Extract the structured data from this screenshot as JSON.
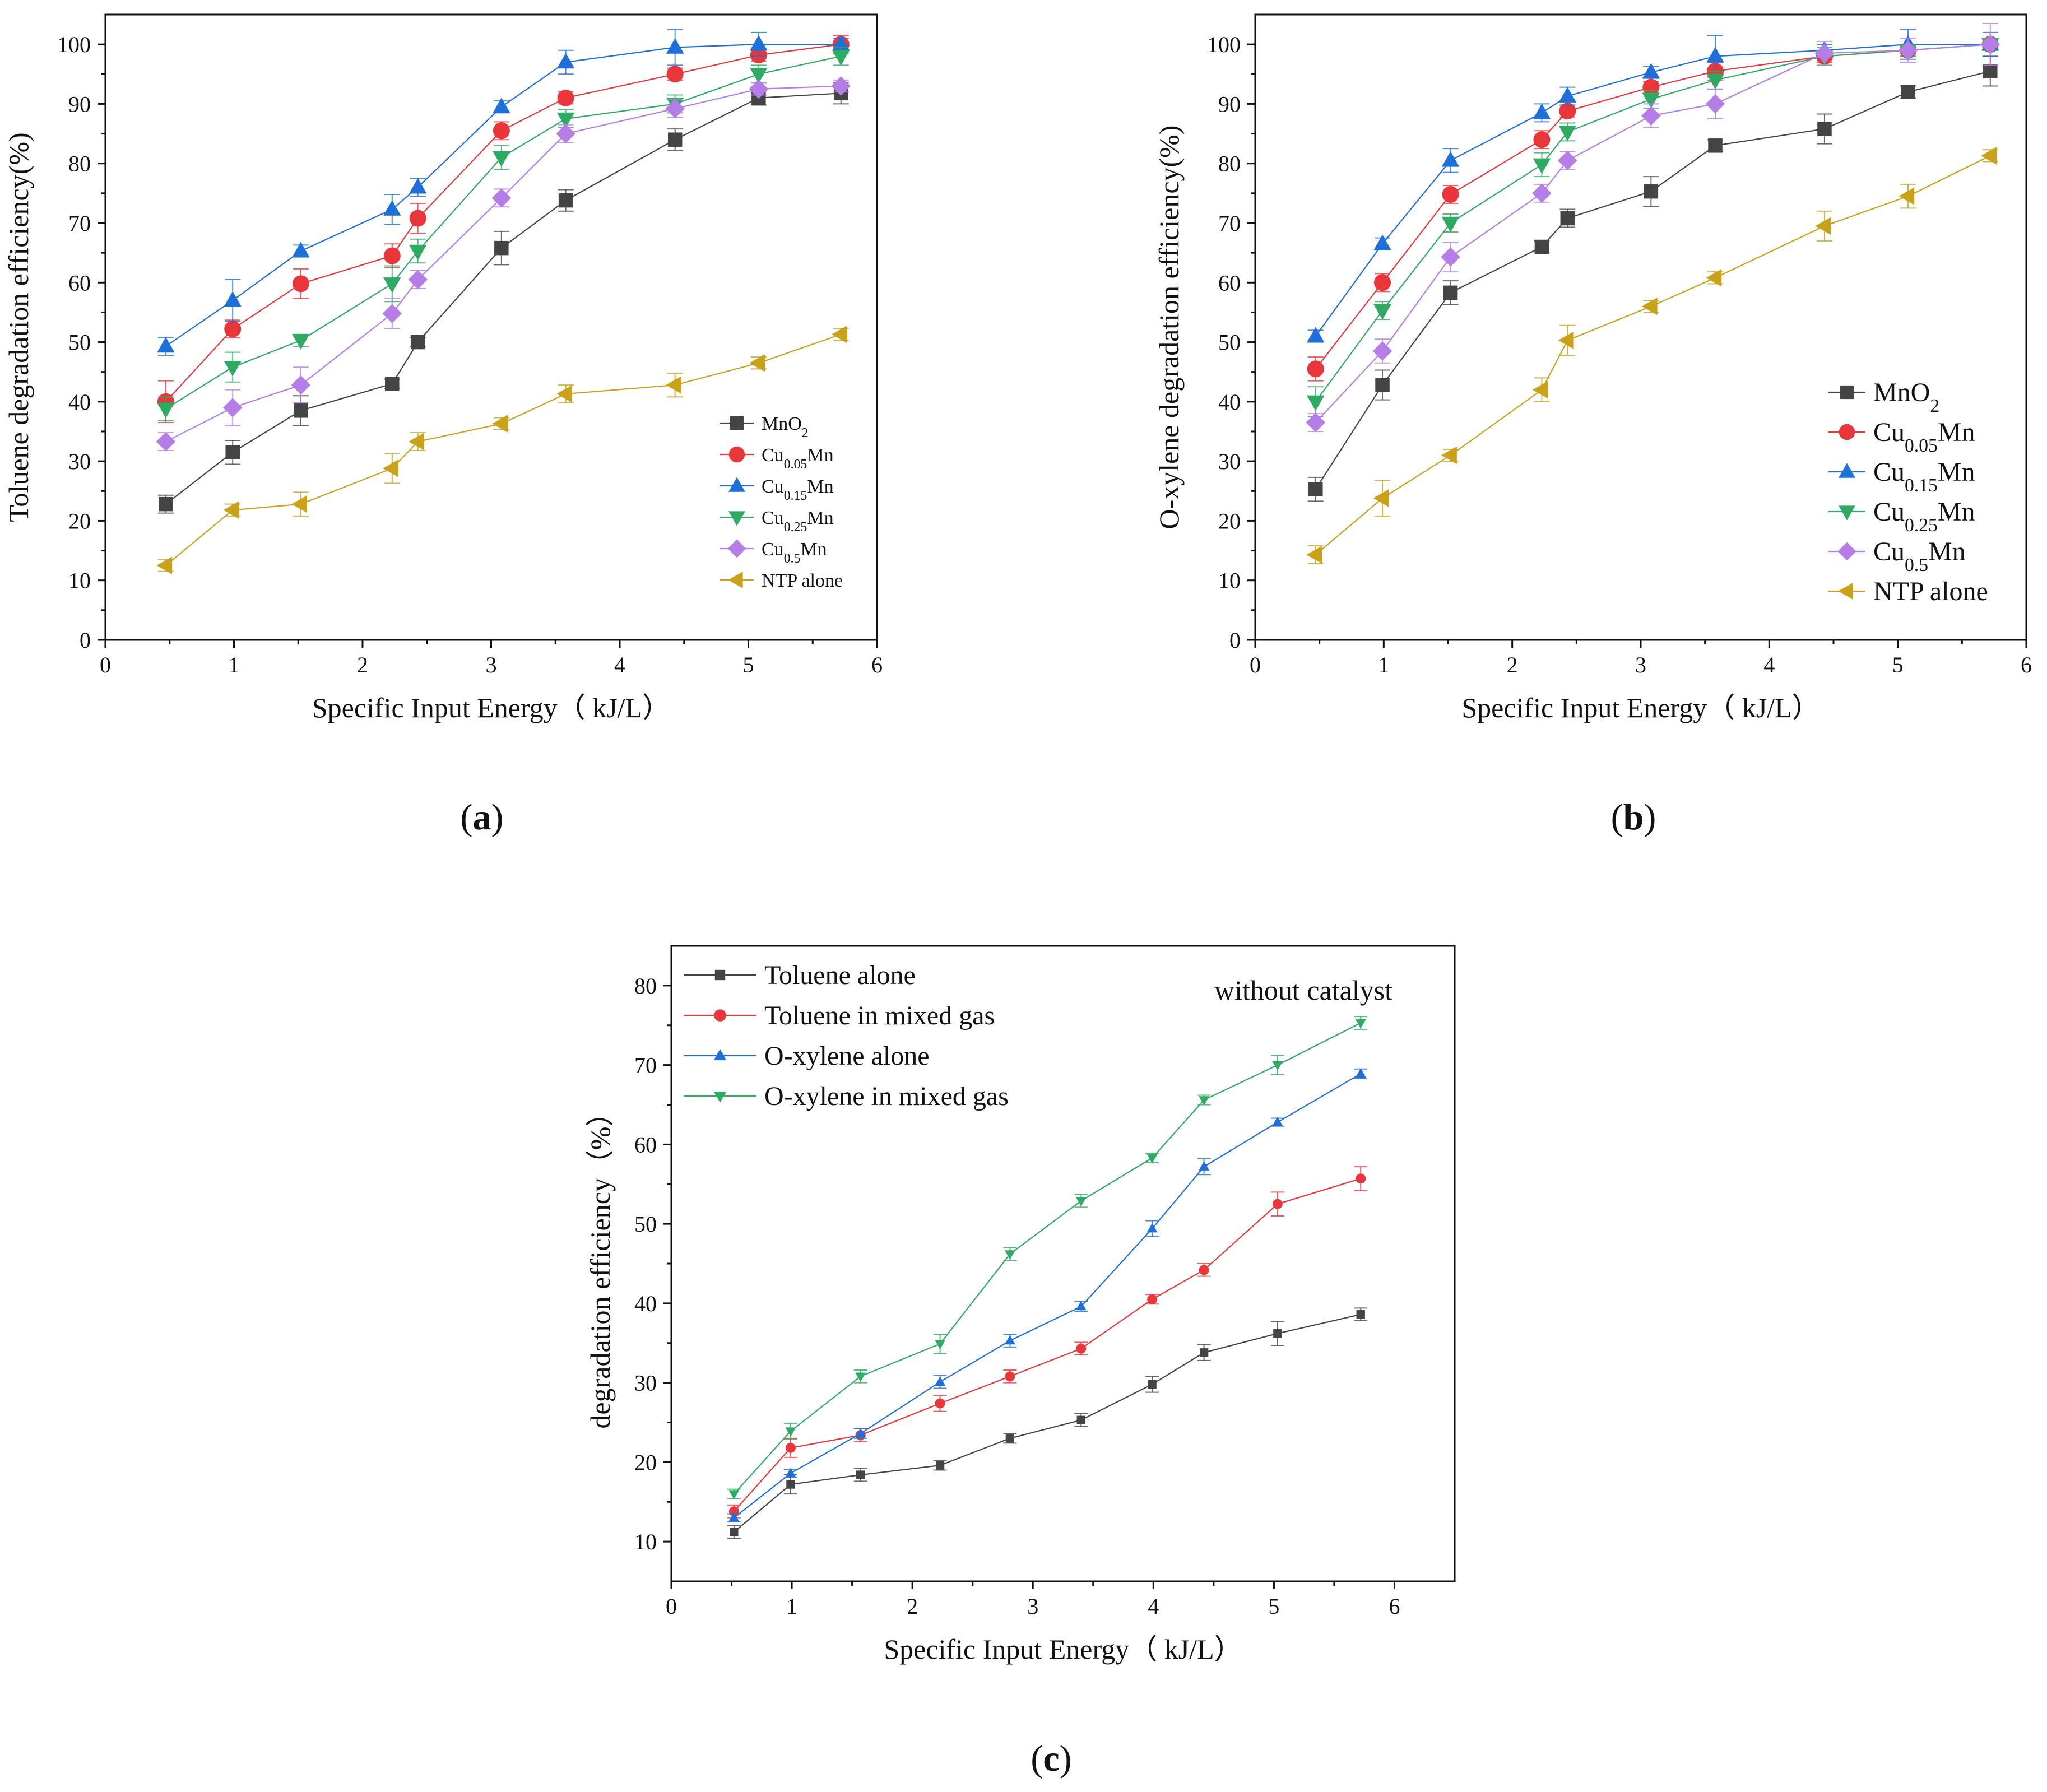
{
  "figure": {
    "panel_labels": [
      {
        "open": "(",
        "letter": "a",
        "close": ")"
      },
      {
        "open": "(",
        "letter": "b",
        "close": ")"
      },
      {
        "open": "(",
        "letter": "c",
        "close": ")"
      }
    ]
  },
  "chart_data": [
    {
      "panel": "a",
      "type": "line",
      "title": "",
      "xlabel": "Specific Input Energy（ kJ/L）",
      "ylabel": "Toluene degradation efficiency(%)",
      "xlim": [
        0,
        6
      ],
      "ylim": [
        0,
        105
      ],
      "xticks": [
        0,
        1,
        2,
        3,
        4,
        5,
        6
      ],
      "yticks": [
        0,
        10,
        20,
        30,
        40,
        50,
        60,
        70,
        80,
        90,
        100
      ],
      "legend_position": "center-right",
      "series": [
        {
          "name": "MnO₂",
          "label_main": "MnO",
          "label_sub": "2",
          "label_tail": "",
          "color": "#444444",
          "marker": "square",
          "x": [
            0.47,
            0.99,
            1.52,
            2.23,
            2.43,
            3.08,
            3.58,
            4.43,
            5.08,
            5.72
          ],
          "y": [
            22.8,
            31.5,
            38.5,
            43.0,
            50.0,
            65.8,
            73.8,
            84.0,
            91.0,
            91.8
          ],
          "err": [
            1.5,
            2.0,
            2.5,
            0.8,
            0.8,
            2.8,
            1.8,
            1.8,
            1.2,
            1.8
          ]
        },
        {
          "name": "Cu0.05Mn",
          "label_main": "Cu",
          "label_sub": "0.05",
          "label_tail": "Mn",
          "color": "#e8363a",
          "marker": "circle",
          "x": [
            0.47,
            0.99,
            1.52,
            2.23,
            2.43,
            3.08,
            3.58,
            4.43,
            5.08,
            5.72
          ],
          "y": [
            40.0,
            52.2,
            59.8,
            64.5,
            70.8,
            85.5,
            91.0,
            95.0,
            98.2,
            100.0
          ],
          "err": [
            3.5,
            1.5,
            2.5,
            2.0,
            2.5,
            1.5,
            1.0,
            1.0,
            1.0,
            1.5
          ]
        },
        {
          "name": "Cu0.15Mn",
          "label_main": "Cu",
          "label_sub": "0.15",
          "label_tail": "Mn",
          "color": "#1f6fd8",
          "marker": "triangle-up",
          "x": [
            0.47,
            0.99,
            1.52,
            2.23,
            2.43,
            3.08,
            3.58,
            4.43,
            5.08,
            5.72
          ],
          "y": [
            49.3,
            57.0,
            65.3,
            72.3,
            76.0,
            89.5,
            97.0,
            99.5,
            100.0,
            100.0
          ],
          "err": [
            1.5,
            3.5,
            1.0,
            2.5,
            1.5,
            1.0,
            2.0,
            3.0,
            2.0,
            1.0
          ]
        },
        {
          "name": "Cu0.25Mn",
          "label_main": "Cu",
          "label_sub": "0.25",
          "label_tail": "Mn",
          "color": "#2eaa63",
          "marker": "triangle-down",
          "x": [
            0.47,
            0.99,
            1.52,
            2.23,
            2.43,
            3.08,
            3.58,
            4.43,
            5.08,
            5.72
          ],
          "y": [
            38.8,
            45.8,
            50.3,
            59.8,
            65.3,
            81.0,
            87.5,
            90.0,
            95.0,
            98.0
          ],
          "err": [
            2.0,
            2.5,
            1.0,
            3.0,
            2.0,
            2.0,
            1.5,
            1.5,
            1.5,
            1.5
          ]
        },
        {
          "name": "Cu0.5Mn",
          "label_main": "Cu",
          "label_sub": "0.5",
          "label_tail": "Mn",
          "color": "#b57ee6",
          "marker": "diamond",
          "x": [
            0.47,
            0.99,
            1.52,
            2.23,
            2.43,
            3.08,
            3.58,
            4.43,
            5.08,
            5.72
          ],
          "y": [
            33.3,
            39.0,
            42.8,
            54.8,
            60.5,
            74.2,
            85.0,
            89.2,
            92.5,
            93.0
          ],
          "err": [
            1.5,
            3.0,
            3.0,
            2.5,
            1.5,
            1.5,
            1.5,
            1.5,
            1.0,
            1.0
          ]
        },
        {
          "name": "NTP alone",
          "label_main": "NTP alone",
          "label_sub": "",
          "label_tail": "",
          "color": "#c9a21a",
          "marker": "triangle-left",
          "x": [
            0.47,
            0.99,
            1.52,
            2.23,
            2.43,
            3.08,
            3.58,
            4.43,
            5.08,
            5.72
          ],
          "y": [
            12.5,
            21.8,
            22.8,
            28.8,
            33.3,
            36.3,
            41.3,
            42.8,
            46.5,
            51.3
          ],
          "err": [
            1.0,
            1.0,
            2.0,
            2.5,
            1.5,
            1.0,
            1.5,
            2.0,
            1.0,
            1.0
          ]
        }
      ]
    },
    {
      "panel": "b",
      "type": "line",
      "title": "",
      "xlabel": "Specific Input Energy（ kJ/L）",
      "ylabel": "O-xylene degradation efficiency(%)",
      "xlim": [
        0,
        6
      ],
      "ylim": [
        0,
        105
      ],
      "xticks": [
        0,
        1,
        2,
        3,
        4,
        5,
        6
      ],
      "yticks": [
        0,
        10,
        20,
        30,
        40,
        50,
        60,
        70,
        80,
        90,
        100
      ],
      "legend_position": "bottom-right",
      "series": [
        {
          "name": "MnO₂",
          "label_main": "MnO",
          "label_sub": "2",
          "label_tail": "",
          "color": "#444444",
          "marker": "square",
          "x": [
            0.47,
            0.99,
            1.52,
            2.23,
            2.43,
            3.08,
            3.58,
            4.43,
            5.08,
            5.72
          ],
          "y": [
            25.3,
            42.8,
            58.3,
            66.0,
            70.8,
            75.3,
            83.0,
            85.8,
            92.0,
            95.5
          ],
          "err": [
            2.0,
            2.5,
            2.0,
            1.0,
            1.5,
            2.5,
            1.0,
            2.5,
            1.0,
            2.5
          ]
        },
        {
          "name": "Cu0.05Mn",
          "label_main": "Cu",
          "label_sub": "0.05",
          "label_tail": "Mn",
          "color": "#e8363a",
          "marker": "circle",
          "x": [
            0.47,
            0.99,
            1.52,
            2.23,
            2.43,
            3.08,
            3.58,
            4.43,
            5.08,
            5.72
          ],
          "y": [
            45.5,
            60.0,
            74.8,
            84.0,
            88.8,
            92.8,
            95.5,
            98.0,
            99.0,
            100.0
          ],
          "err": [
            2.0,
            1.5,
            1.5,
            1.5,
            1.0,
            1.0,
            1.5,
            1.0,
            1.0,
            1.0
          ]
        },
        {
          "name": "Cu0.15Mn",
          "label_main": "Cu",
          "label_sub": "0.15",
          "label_tail": "Mn",
          "color": "#1f6fd8",
          "marker": "triangle-up",
          "x": [
            0.47,
            0.99,
            1.52,
            2.23,
            2.43,
            3.08,
            3.58,
            4.43,
            5.08,
            5.72
          ],
          "y": [
            51.0,
            66.5,
            80.5,
            88.5,
            91.3,
            95.3,
            98.0,
            99.0,
            100.0,
            100.0
          ],
          "err": [
            1.0,
            1.0,
            2.0,
            1.5,
            1.5,
            1.0,
            3.5,
            1.0,
            2.5,
            2.0
          ]
        },
        {
          "name": "Cu0.25Mn",
          "label_main": "Cu",
          "label_sub": "0.25",
          "label_tail": "Mn",
          "color": "#2eaa63",
          "marker": "triangle-down",
          "x": [
            0.47,
            0.99,
            1.52,
            2.23,
            2.43,
            3.08,
            3.58,
            4.43,
            5.08,
            5.72
          ],
          "y": [
            40.0,
            55.3,
            70.0,
            79.8,
            85.3,
            90.8,
            94.0,
            98.0,
            99.0,
            100.0
          ],
          "err": [
            2.5,
            1.5,
            1.5,
            2.0,
            1.5,
            1.5,
            1.5,
            1.5,
            1.0,
            1.0
          ]
        },
        {
          "name": "Cu0.5Mn",
          "label_main": "Cu",
          "label_sub": "0.5",
          "label_tail": "Mn",
          "color": "#b57ee6",
          "marker": "diamond",
          "x": [
            0.47,
            0.99,
            1.52,
            2.23,
            2.43,
            3.08,
            3.58,
            4.43,
            5.08,
            5.72
          ],
          "y": [
            36.5,
            48.5,
            64.3,
            75.0,
            80.5,
            88.0,
            90.0,
            98.5,
            99.0,
            100.0
          ],
          "err": [
            1.5,
            2.0,
            2.5,
            1.5,
            1.5,
            2.0,
            2.5,
            2.0,
            2.0,
            3.5
          ]
        },
        {
          "name": "NTP alone",
          "label_main": "NTP alone",
          "label_sub": "",
          "label_tail": "",
          "color": "#c9a21a",
          "marker": "triangle-left",
          "x": [
            0.47,
            0.99,
            1.52,
            2.23,
            2.43,
            3.08,
            3.58,
            4.43,
            5.08,
            5.72
          ],
          "y": [
            14.3,
            23.8,
            31.0,
            42.0,
            50.3,
            56.0,
            60.8,
            69.5,
            74.5,
            81.3
          ],
          "err": [
            1.5,
            3.0,
            1.0,
            2.0,
            2.5,
            1.0,
            1.0,
            2.5,
            2.0,
            1.0
          ]
        }
      ]
    },
    {
      "panel": "c",
      "type": "line",
      "title": "",
      "annotation": "without catalyst",
      "xlabel": "Specific Input Energy（ kJ/L）",
      "ylabel": "degradation efficiency（%）",
      "xlim": [
        0,
        6.5
      ],
      "ylim": [
        5,
        85
      ],
      "xticks": [
        0,
        1,
        2,
        3,
        4,
        5,
        6
      ],
      "yticks": [
        10,
        20,
        30,
        40,
        50,
        60,
        70,
        80
      ],
      "legend_position": "top-left",
      "series": [
        {
          "name": "Toluene alone",
          "label_main": "Toluene alone",
          "label_sub": "",
          "label_tail": "",
          "color": "#444444",
          "marker": "square",
          "x": [
            0.52,
            0.99,
            1.57,
            2.23,
            2.81,
            3.4,
            3.99,
            4.42,
            5.03,
            5.72
          ],
          "y": [
            11.2,
            17.2,
            18.4,
            19.6,
            23.0,
            25.3,
            29.8,
            33.8,
            36.2,
            38.6
          ],
          "err": [
            0.8,
            1.2,
            0.8,
            0.6,
            0.6,
            0.8,
            1.0,
            1.0,
            1.5,
            0.8
          ]
        },
        {
          "name": "Toluene in mixed gas",
          "label_main": "Toluene in mixed gas",
          "label_sub": "",
          "label_tail": "",
          "color": "#e8363a",
          "marker": "circle",
          "x": [
            0.52,
            0.99,
            1.57,
            2.23,
            2.81,
            3.4,
            3.99,
            4.42,
            5.03,
            5.72
          ],
          "y": [
            13.8,
            21.8,
            23.4,
            27.4,
            30.8,
            34.3,
            40.5,
            44.2,
            52.5,
            55.7
          ],
          "err": [
            0.8,
            1.2,
            0.8,
            1.0,
            0.8,
            0.8,
            0.6,
            0.8,
            1.5,
            1.5
          ]
        },
        {
          "name": "O-xylene alone",
          "label_main": "O-xylene alone",
          "label_sub": "",
          "label_tail": "",
          "color": "#1f6fd8",
          "marker": "triangle-up",
          "x": [
            0.52,
            0.99,
            1.57,
            2.23,
            2.81,
            3.4,
            3.99,
            4.42,
            5.03,
            5.72
          ],
          "y": [
            13.0,
            18.6,
            23.6,
            30.1,
            35.3,
            39.6,
            49.4,
            57.2,
            62.8,
            68.9
          ],
          "err": [
            0.5,
            0.5,
            0.6,
            0.8,
            0.8,
            0.6,
            1.0,
            1.0,
            0.5,
            0.6
          ]
        },
        {
          "name": "O-xylene in mixed gas",
          "label_main": "O-xylene in mixed gas",
          "label_sub": "",
          "label_tail": "",
          "color": "#2eaa63",
          "marker": "triangle-down",
          "x": [
            0.52,
            0.99,
            1.57,
            2.23,
            2.81,
            3.4,
            3.99,
            4.42,
            5.03,
            5.72
          ],
          "y": [
            16.0,
            23.9,
            30.8,
            34.9,
            46.2,
            52.9,
            58.3,
            65.6,
            70.0,
            75.3
          ],
          "err": [
            0.6,
            1.0,
            0.8,
            1.2,
            0.8,
            0.8,
            0.6,
            0.6,
            1.2,
            0.8
          ]
        }
      ]
    }
  ]
}
